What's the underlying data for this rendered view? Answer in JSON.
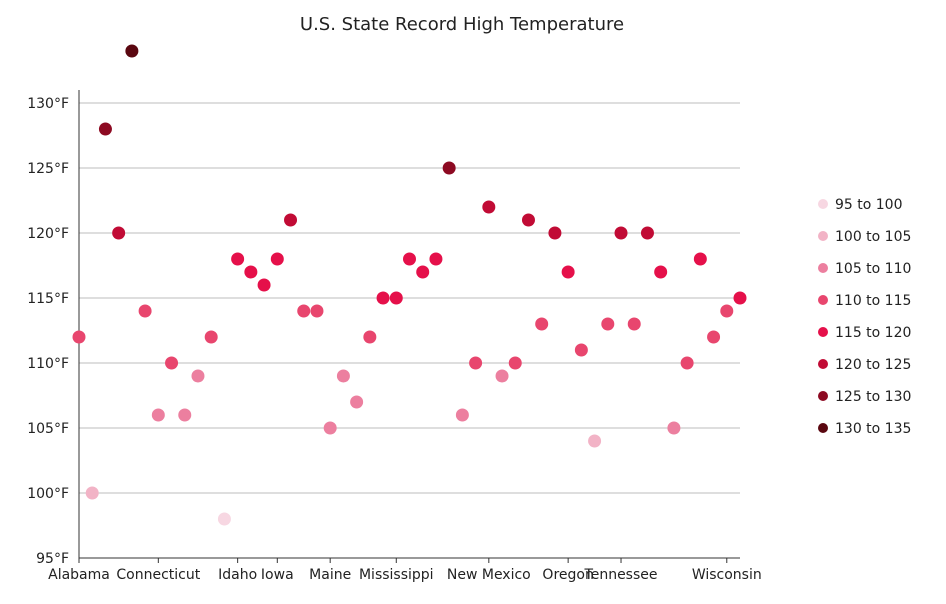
{
  "chart_data": {
    "type": "scatter",
    "title": "U.S. State Record High Temperature",
    "xlabel": "",
    "ylabel": "",
    "ylim": [
      95,
      135
    ],
    "y_ticks": [
      95,
      100,
      105,
      110,
      115,
      120,
      125,
      130
    ],
    "y_unit": "°F",
    "grid": true,
    "legend_position": "right",
    "x_tick_labels": [
      {
        "index": 0,
        "label": "Alabama"
      },
      {
        "index": 6,
        "label": "Connecticut"
      },
      {
        "index": 12,
        "label": "Idaho"
      },
      {
        "index": 15,
        "label": "Iowa"
      },
      {
        "index": 19,
        "label": "Maine"
      },
      {
        "index": 24,
        "label": "Mississippi"
      },
      {
        "index": 31,
        "label": "New Mexico"
      },
      {
        "index": 37,
        "label": "Oregon"
      },
      {
        "index": 41,
        "label": "Tennessee"
      },
      {
        "index": 49,
        "label": "Wisconsin"
      }
    ],
    "values": [
      112,
      100,
      128,
      120,
      134,
      114,
      106,
      110,
      106,
      109,
      112,
      98,
      118,
      117,
      116,
      118,
      121,
      114,
      114,
      105,
      109,
      107,
      112,
      115,
      115,
      118,
      117,
      118,
      125,
      106,
      110,
      122,
      109,
      110,
      121,
      113,
      120,
      117,
      111,
      104,
      113,
      120,
      113,
      120,
      117,
      105,
      110,
      118,
      112,
      114,
      115
    ],
    "legend": [
      {
        "label": "95 to 100",
        "color": "#f7d7e2"
      },
      {
        "label": "100 to 105",
        "color": "#f2b3c6"
      },
      {
        "label": "105 to 110",
        "color": "#ec7f9f"
      },
      {
        "label": "110 to 115",
        "color": "#e8466e"
      },
      {
        "label": "115 to 120",
        "color": "#e5104a"
      },
      {
        "label": "120 to 125",
        "color": "#c10b35"
      },
      {
        "label": "125 to 130",
        "color": "#8d0a22"
      },
      {
        "label": "130 to 135",
        "color": "#5a0710"
      }
    ]
  }
}
